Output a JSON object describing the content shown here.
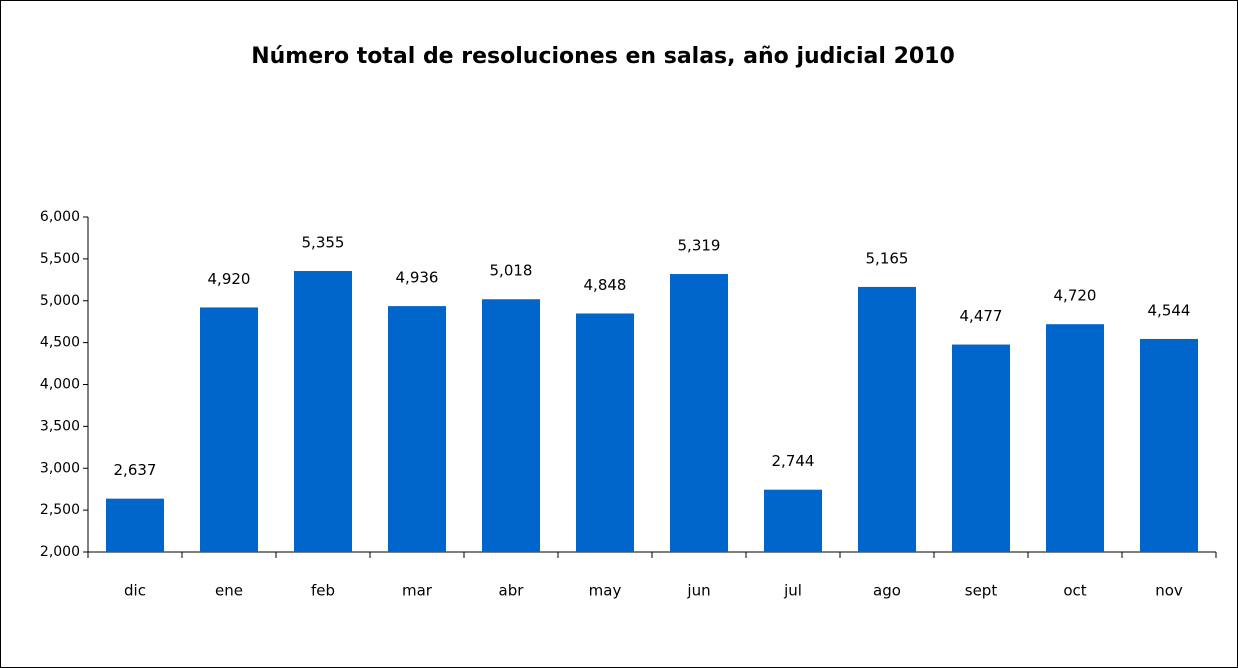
{
  "chart_data": {
    "type": "bar",
    "title": "Número total de resoluciones en salas, año judicial 2010",
    "categories": [
      "dic",
      "ene",
      "feb",
      "mar",
      "abr",
      "may",
      "jun",
      "jul",
      "ago",
      "sept",
      "oct",
      "nov"
    ],
    "values": [
      2637,
      4920,
      5355,
      4936,
      5018,
      4848,
      5319,
      2744,
      5165,
      4477,
      4720,
      4544
    ],
    "value_labels": [
      "2,637",
      "4,920",
      "5,355",
      "4,936",
      "5,018",
      "4,848",
      "5,319",
      "2,744",
      "5,165",
      "4,477",
      "4,720",
      "4,544"
    ],
    "color": "#0066cc",
    "ylim": [
      2000,
      6000
    ],
    "yticks": [
      {
        "value": 2000,
        "label": "2,000"
      },
      {
        "value": 2500,
        "label": "2,500"
      },
      {
        "value": 3000,
        "label": "3,000"
      },
      {
        "value": 3500,
        "label": "3,500"
      },
      {
        "value": 4000,
        "label": "4,000"
      },
      {
        "value": 4500,
        "label": "4,500"
      },
      {
        "value": 5000,
        "label": "5,000"
      },
      {
        "value": 5500,
        "label": "5,500"
      },
      {
        "value": 6000,
        "label": "6,000"
      }
    ],
    "grid": false
  }
}
